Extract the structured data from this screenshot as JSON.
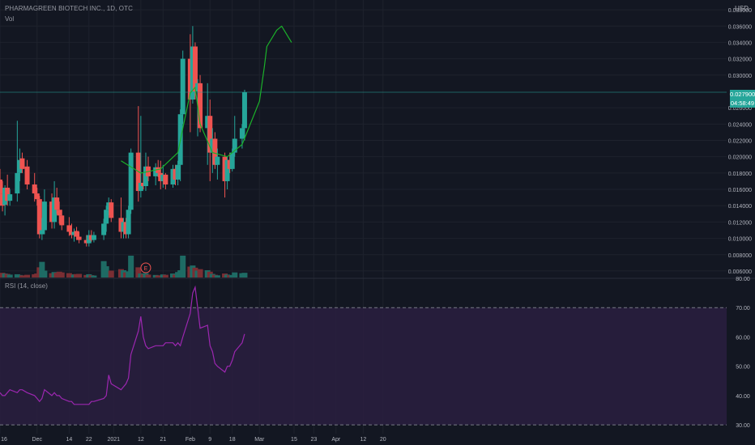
{
  "header": {
    "symbol_title": "PHARMAGREEN BIOTECH INC., 1D, OTC",
    "volume_label": "Vol",
    "currency": "USD",
    "rsi_label": "RSI (14, close)"
  },
  "price_axis": {
    "ticks": [
      {
        "v": 0.038,
        "label": "0.038000"
      },
      {
        "v": 0.036,
        "label": "0.036000"
      },
      {
        "v": 0.034,
        "label": "0.034000"
      },
      {
        "v": 0.032,
        "label": "0.032000"
      },
      {
        "v": 0.03,
        "label": "0.030000"
      },
      {
        "v": 0.026,
        "label": "0.026000"
      },
      {
        "v": 0.024,
        "label": "0.024000"
      },
      {
        "v": 0.022,
        "label": "0.022000"
      },
      {
        "v": 0.02,
        "label": "0.020000"
      },
      {
        "v": 0.018,
        "label": "0.018000"
      },
      {
        "v": 0.016,
        "label": "0.016000"
      },
      {
        "v": 0.014,
        "label": "0.014000"
      },
      {
        "v": 0.012,
        "label": "0.012000"
      },
      {
        "v": 0.01,
        "label": "0.010000"
      },
      {
        "v": 0.008,
        "label": "0.008000"
      },
      {
        "v": 0.006,
        "label": "0.006000"
      }
    ],
    "current_price": "0.027900",
    "countdown": "04:58:49"
  },
  "rsi_axis": {
    "ticks": [
      {
        "v": 80,
        "label": "80.00"
      },
      {
        "v": 70,
        "label": "70.00"
      },
      {
        "v": 60,
        "label": "60.00"
      },
      {
        "v": 50,
        "label": "50.00"
      },
      {
        "v": 40,
        "label": "40.00"
      },
      {
        "v": 30,
        "label": "30.00"
      }
    ],
    "upper_band": 70,
    "lower_band": 30
  },
  "time_axis": {
    "labels": [
      {
        "date": "2020-11-16",
        "label": "16"
      },
      {
        "date": "2020-12-01",
        "label": "Dec"
      },
      {
        "date": "2020-12-14",
        "label": "14"
      },
      {
        "date": "2020-12-22",
        "label": "22"
      },
      {
        "date": "2021-01-01",
        "label": "2021"
      },
      {
        "date": "2021-01-12",
        "label": "12"
      },
      {
        "date": "2021-01-21",
        "label": "21"
      },
      {
        "date": "2021-02-01",
        "label": "Feb"
      },
      {
        "date": "2021-02-09",
        "label": "9"
      },
      {
        "date": "2021-02-18",
        "label": "18"
      },
      {
        "date": "2021-03-01",
        "label": "Mar"
      },
      {
        "date": "2021-03-15",
        "label": "15"
      },
      {
        "date": "2021-03-23",
        "label": "23"
      },
      {
        "date": "2021-04-01",
        "label": "Apr"
      },
      {
        "date": "2021-04-12",
        "label": "12"
      },
      {
        "date": "2021-04-20",
        "label": "20"
      }
    ]
  },
  "earnings_marker": {
    "date": "2021-01-14",
    "label": "E"
  },
  "colors": {
    "up": "#26a69a",
    "down": "#ef5350",
    "up_volume": "#1e6b64",
    "down_volume": "#7a2e33",
    "rsi_line": "#9c27b0",
    "rsi_band_fill": "#2a1e3f",
    "drawing": "#1bb12a",
    "background": "#131722",
    "grid": "#1e222d"
  },
  "chart_data": {
    "type": "candlestick",
    "series": [
      {
        "date": "2020-11-16",
        "open": 0.0172,
        "high": 0.0185,
        "low": 0.014,
        "close": 0.0155,
        "volume": 2.4,
        "rsi": 41
      },
      {
        "date": "2020-11-17",
        "open": 0.0155,
        "high": 0.017,
        "low": 0.0133,
        "close": 0.014,
        "volume": 2.6,
        "rsi": 40
      },
      {
        "date": "2020-11-18",
        "open": 0.0141,
        "high": 0.0165,
        "low": 0.0128,
        "close": 0.0162,
        "volume": 2.2,
        "rsi": 40
      },
      {
        "date": "2020-11-19",
        "open": 0.0162,
        "high": 0.0178,
        "low": 0.014,
        "close": 0.0146,
        "volume": 2.0,
        "rsi": 41
      },
      {
        "date": "2020-11-20",
        "open": 0.0146,
        "high": 0.016,
        "low": 0.014,
        "close": 0.0154,
        "volume": 1.6,
        "rsi": 42
      },
      {
        "date": "2020-11-23",
        "open": 0.0155,
        "high": 0.0244,
        "low": 0.0145,
        "close": 0.018,
        "volume": 1.8,
        "rsi": 41
      },
      {
        "date": "2020-11-24",
        "open": 0.018,
        "high": 0.021,
        "low": 0.017,
        "close": 0.0196,
        "volume": 1.4,
        "rsi": 42
      },
      {
        "date": "2020-11-25",
        "open": 0.0198,
        "high": 0.0205,
        "low": 0.018,
        "close": 0.0185,
        "volume": 1.2,
        "rsi": 42
      },
      {
        "date": "2020-11-27",
        "open": 0.0188,
        "high": 0.0196,
        "low": 0.016,
        "close": 0.0166,
        "volume": 1.5,
        "rsi": 41
      },
      {
        "date": "2020-11-30",
        "open": 0.0166,
        "high": 0.018,
        "low": 0.0145,
        "close": 0.0155,
        "volume": 1.8,
        "rsi": 40
      },
      {
        "date": "2020-12-01",
        "open": 0.0155,
        "high": 0.0162,
        "low": 0.014,
        "close": 0.0148,
        "volume": 2.2,
        "rsi": 39
      },
      {
        "date": "2020-12-02",
        "open": 0.0148,
        "high": 0.0152,
        "low": 0.01,
        "close": 0.0105,
        "volume": 5.6,
        "rsi": 38
      },
      {
        "date": "2020-12-03",
        "open": 0.0105,
        "high": 0.0125,
        "low": 0.0098,
        "close": 0.011,
        "volume": 8.6,
        "rsi": 39
      },
      {
        "date": "2020-12-04",
        "open": 0.011,
        "high": 0.016,
        "low": 0.0105,
        "close": 0.0145,
        "volume": 3.8,
        "rsi": 42
      },
      {
        "date": "2020-12-07",
        "open": 0.0145,
        "high": 0.0155,
        "low": 0.0112,
        "close": 0.012,
        "volume": 2.4,
        "rsi": 40
      },
      {
        "date": "2020-12-08",
        "open": 0.012,
        "high": 0.017,
        "low": 0.0112,
        "close": 0.015,
        "volume": 3.0,
        "rsi": 41
      },
      {
        "date": "2020-12-09",
        "open": 0.015,
        "high": 0.0162,
        "low": 0.013,
        "close": 0.0135,
        "volume": 2.6,
        "rsi": 40
      },
      {
        "date": "2020-12-10",
        "open": 0.0135,
        "high": 0.0145,
        "low": 0.0118,
        "close": 0.0128,
        "volume": 3.2,
        "rsi": 40
      },
      {
        "date": "2020-12-11",
        "open": 0.0128,
        "high": 0.0135,
        "low": 0.011,
        "close": 0.0116,
        "volume": 2.8,
        "rsi": 39
      },
      {
        "date": "2020-12-14",
        "open": 0.0116,
        "high": 0.0126,
        "low": 0.0103,
        "close": 0.0108,
        "volume": 2.4,
        "rsi": 38
      },
      {
        "date": "2020-12-15",
        "open": 0.0108,
        "high": 0.0118,
        "low": 0.01,
        "close": 0.0104,
        "volume": 1.8,
        "rsi": 38
      },
      {
        "date": "2020-12-16",
        "open": 0.0104,
        "high": 0.0112,
        "low": 0.0096,
        "close": 0.0108,
        "volume": 1.6,
        "rsi": 37
      },
      {
        "date": "2020-12-17",
        "open": 0.0109,
        "high": 0.0114,
        "low": 0.0098,
        "close": 0.0102,
        "volume": 1.9,
        "rsi": 37
      },
      {
        "date": "2020-12-18",
        "open": 0.0102,
        "high": 0.0108,
        "low": 0.0094,
        "close": 0.0098,
        "volume": 2.0,
        "rsi": 37
      },
      {
        "date": "2020-12-21",
        "open": 0.0098,
        "high": 0.0104,
        "low": 0.009,
        "close": 0.0094,
        "volume": 1.4,
        "rsi": 37
      },
      {
        "date": "2020-12-22",
        "open": 0.0094,
        "high": 0.011,
        "low": 0.009,
        "close": 0.0104,
        "volume": 1.8,
        "rsi": 37
      },
      {
        "date": "2020-12-23",
        "open": 0.0104,
        "high": 0.011,
        "low": 0.0096,
        "close": 0.0098,
        "volume": 1.3,
        "rsi": 38
      },
      {
        "date": "2020-12-24",
        "open": 0.0098,
        "high": 0.0108,
        "low": 0.0095,
        "close": 0.0104,
        "volume": 1.1,
        "rsi": 38
      },
      {
        "date": "2020-12-28",
        "open": 0.0104,
        "high": 0.0124,
        "low": 0.0098,
        "close": 0.0118,
        "volume": 9.0,
        "rsi": 39
      },
      {
        "date": "2020-12-29",
        "open": 0.0118,
        "high": 0.014,
        "low": 0.0108,
        "close": 0.0135,
        "volume": 6.2,
        "rsi": 40
      },
      {
        "date": "2020-12-30",
        "open": 0.0135,
        "high": 0.015,
        "low": 0.0128,
        "close": 0.0144,
        "volume": 3.2,
        "rsi": 47
      },
      {
        "date": "2020-12-31",
        "open": 0.0144,
        "high": 0.0148,
        "low": 0.012,
        "close": 0.0125,
        "volume": 3.8,
        "rsi": 44
      },
      {
        "date": "2021-01-04",
        "open": 0.0125,
        "high": 0.015,
        "low": 0.01,
        "close": 0.0108,
        "volume": 4.6,
        "rsi": 42
      },
      {
        "date": "2021-01-05",
        "open": 0.0108,
        "high": 0.0125,
        "low": 0.01,
        "close": 0.012,
        "volume": 4.0,
        "rsi": 43
      },
      {
        "date": "2021-01-06",
        "open": 0.012,
        "high": 0.0125,
        "low": 0.01,
        "close": 0.0105,
        "volume": 2.8,
        "rsi": 44
      },
      {
        "date": "2021-01-07",
        "open": 0.0105,
        "high": 0.014,
        "low": 0.01,
        "close": 0.0135,
        "volume": 3.4,
        "rsi": 46
      },
      {
        "date": "2021-01-08",
        "open": 0.0135,
        "high": 0.021,
        "low": 0.013,
        "close": 0.0205,
        "volume": 12.0,
        "rsi": 54
      },
      {
        "date": "2021-01-11",
        "open": 0.0205,
        "high": 0.0262,
        "low": 0.0145,
        "close": 0.0158,
        "volume": 5.6,
        "rsi": 62
      },
      {
        "date": "2021-01-12",
        "open": 0.0158,
        "high": 0.025,
        "low": 0.015,
        "close": 0.0168,
        "volume": 2.2,
        "rsi": 67
      },
      {
        "date": "2021-01-13",
        "open": 0.0168,
        "high": 0.018,
        "low": 0.016,
        "close": 0.0164,
        "volume": 1.8,
        "rsi": 60
      },
      {
        "date": "2021-01-14",
        "open": 0.0164,
        "high": 0.0205,
        "low": 0.0158,
        "close": 0.0188,
        "volume": 2.4,
        "rsi": 57
      },
      {
        "date": "2021-01-15",
        "open": 0.0188,
        "high": 0.02,
        "low": 0.017,
        "close": 0.0176,
        "volume": 1.6,
        "rsi": 56
      },
      {
        "date": "2021-01-18",
        "open": 0.0176,
        "high": 0.0192,
        "low": 0.0165,
        "close": 0.0187,
        "volume": 1.4,
        "rsi": 57
      },
      {
        "date": "2021-01-19",
        "open": 0.0187,
        "high": 0.0196,
        "low": 0.0175,
        "close": 0.018,
        "volume": 1.1,
        "rsi": 57
      },
      {
        "date": "2021-01-20",
        "open": 0.018,
        "high": 0.0195,
        "low": 0.016,
        "close": 0.017,
        "volume": 1.2,
        "rsi": 57
      },
      {
        "date": "2021-01-21",
        "open": 0.017,
        "high": 0.019,
        "low": 0.0162,
        "close": 0.0178,
        "volume": 1.7,
        "rsi": 57
      },
      {
        "date": "2021-01-22",
        "open": 0.0178,
        "high": 0.018,
        "low": 0.016,
        "close": 0.0166,
        "volume": 1.5,
        "rsi": 58
      },
      {
        "date": "2021-01-25",
        "open": 0.0166,
        "high": 0.019,
        "low": 0.0162,
        "close": 0.0185,
        "volume": 2.2,
        "rsi": 58
      },
      {
        "date": "2021-01-26",
        "open": 0.0185,
        "high": 0.019,
        "low": 0.0165,
        "close": 0.0172,
        "volume": 1.6,
        "rsi": 57
      },
      {
        "date": "2021-01-27",
        "open": 0.0172,
        "high": 0.0195,
        "low": 0.0165,
        "close": 0.019,
        "volume": 3.0,
        "rsi": 58
      },
      {
        "date": "2021-01-28",
        "open": 0.019,
        "high": 0.0258,
        "low": 0.017,
        "close": 0.0252,
        "volume": 4.0,
        "rsi": 57
      },
      {
        "date": "2021-01-29",
        "open": 0.0252,
        "high": 0.033,
        "low": 0.024,
        "close": 0.032,
        "volume": 12.0,
        "rsi": 60
      },
      {
        "date": "2021-02-01",
        "open": 0.032,
        "high": 0.035,
        "low": 0.023,
        "close": 0.027,
        "volume": 6.0,
        "rsi": 68
      },
      {
        "date": "2021-02-02",
        "open": 0.027,
        "high": 0.036,
        "low": 0.0265,
        "close": 0.0335,
        "volume": 6.6,
        "rsi": 75
      },
      {
        "date": "2021-02-03",
        "open": 0.0335,
        "high": 0.034,
        "low": 0.027,
        "close": 0.028,
        "volume": 5.4,
        "rsi": 77
      },
      {
        "date": "2021-02-04",
        "open": 0.028,
        "high": 0.0295,
        "low": 0.0225,
        "close": 0.029,
        "volume": 3.8,
        "rsi": 70
      },
      {
        "date": "2021-02-05",
        "open": 0.029,
        "high": 0.03,
        "low": 0.023,
        "close": 0.0235,
        "volume": 4.6,
        "rsi": 63
      },
      {
        "date": "2021-02-08",
        "open": 0.0235,
        "high": 0.029,
        "low": 0.019,
        "close": 0.025,
        "volume": 4.0,
        "rsi": 64
      },
      {
        "date": "2021-02-09",
        "open": 0.025,
        "high": 0.027,
        "low": 0.017,
        "close": 0.0205,
        "volume": 3.2,
        "rsi": 57
      },
      {
        "date": "2021-02-10",
        "open": 0.0205,
        "high": 0.0235,
        "low": 0.018,
        "close": 0.0222,
        "volume": 2.0,
        "rsi": 55
      },
      {
        "date": "2021-02-11",
        "open": 0.0222,
        "high": 0.023,
        "low": 0.0185,
        "close": 0.019,
        "volume": 1.5,
        "rsi": 51
      },
      {
        "date": "2021-02-12",
        "open": 0.019,
        "high": 0.021,
        "low": 0.0172,
        "close": 0.02,
        "volume": 1.2,
        "rsi": 50
      },
      {
        "date": "2021-02-15",
        "open": 0.02,
        "high": 0.0205,
        "low": 0.015,
        "close": 0.017,
        "volume": 2.2,
        "rsi": 48
      },
      {
        "date": "2021-02-16",
        "open": 0.017,
        "high": 0.02,
        "low": 0.016,
        "close": 0.0196,
        "volume": 1.6,
        "rsi": 50
      },
      {
        "date": "2021-02-17",
        "open": 0.0196,
        "high": 0.0205,
        "low": 0.018,
        "close": 0.0185,
        "volume": 1.3,
        "rsi": 50
      },
      {
        "date": "2021-02-18",
        "open": 0.0185,
        "high": 0.021,
        "low": 0.0182,
        "close": 0.0205,
        "volume": 1.4,
        "rsi": 52
      },
      {
        "date": "2021-02-19",
        "open": 0.0205,
        "high": 0.025,
        "low": 0.02,
        "close": 0.0222,
        "volume": 2.8,
        "rsi": 55
      },
      {
        "date": "2021-02-22",
        "open": 0.0222,
        "high": 0.024,
        "low": 0.021,
        "close": 0.0235,
        "volume": 2.4,
        "rsi": 58
      },
      {
        "date": "2021-02-23",
        "open": 0.0235,
        "high": 0.0282,
        "low": 0.022,
        "close": 0.0279,
        "volume": 2.6,
        "rsi": 61
      }
    ],
    "price_range": [
      0.0052,
      0.0388
    ],
    "rsi_range": [
      27,
      80
    ],
    "volume_range": [
      0,
      40
    ]
  }
}
